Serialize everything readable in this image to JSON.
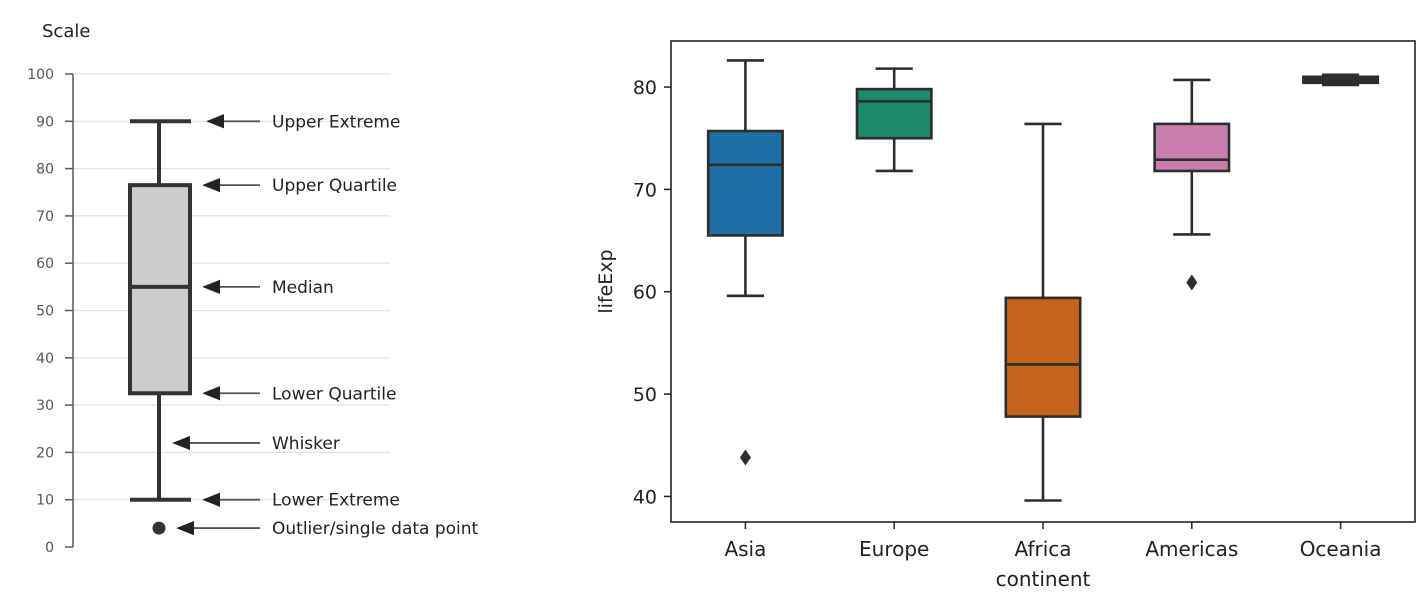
{
  "chart_data": [
    {
      "type": "box",
      "title": "",
      "ylabel": "Scale",
      "ylim": [
        0,
        100
      ],
      "yticks": [
        0,
        10,
        20,
        30,
        40,
        50,
        60,
        70,
        80,
        90,
        100
      ],
      "grid": true,
      "box": {
        "lower_extreme": 10,
        "lower_quartile": 32.5,
        "median": 55,
        "upper_quartile": 76.5,
        "upper_extreme": 90,
        "outlier": 4,
        "color": "#cccccc"
      },
      "annotations": [
        {
          "label": "Upper Extreme",
          "value": 90
        },
        {
          "label": "Upper Quartile",
          "value": 76.5
        },
        {
          "label": "Median",
          "value": 55
        },
        {
          "label": "Lower Quartile",
          "value": 32.5
        },
        {
          "label": "Whisker",
          "value": 22
        },
        {
          "label": "Lower Extreme",
          "value": 10
        },
        {
          "label": "Outlier/single data point",
          "value": 4
        }
      ]
    },
    {
      "type": "box",
      "title": "",
      "xlabel": "continent",
      "ylabel": "lifeExp",
      "ylim": [
        37.5,
        84.5
      ],
      "yticks": [
        40,
        50,
        60,
        70,
        80
      ],
      "categories": [
        "Asia",
        "Europe",
        "Africa",
        "Americas",
        "Oceania"
      ],
      "boxes": [
        {
          "category": "Asia",
          "whisker_low": 59.6,
          "q1": 65.5,
          "median": 72.4,
          "q3": 75.7,
          "whisker_high": 82.6,
          "outliers": [
            43.8
          ],
          "color": "#1f6ea5"
        },
        {
          "category": "Europe",
          "whisker_low": 71.8,
          "q1": 75.0,
          "median": 78.6,
          "q3": 79.8,
          "whisker_high": 81.8,
          "outliers": [],
          "color": "#1a8a6a"
        },
        {
          "category": "Africa",
          "whisker_low": 39.6,
          "q1": 47.8,
          "median": 52.9,
          "q3": 59.4,
          "whisker_high": 76.4,
          "outliers": [],
          "color": "#c5631a"
        },
        {
          "category": "Americas",
          "whisker_low": 65.6,
          "q1": 71.8,
          "median": 72.9,
          "q3": 76.4,
          "whisker_high": 80.7,
          "outliers": [
            60.9
          ],
          "color": "#c97fac"
        },
        {
          "category": "Oceania",
          "whisker_low": 80.2,
          "q1": 80.5,
          "median": 80.7,
          "q3": 81.0,
          "whisker_high": 81.2,
          "outliers": [],
          "color": "#333333"
        }
      ]
    }
  ]
}
